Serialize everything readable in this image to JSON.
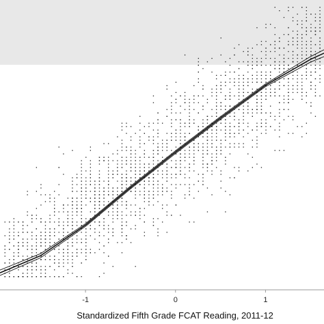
{
  "chart_data": {
    "type": "scatter",
    "title": "",
    "xlabel": "Standardized Fifth Grade FCAT Reading, 2011-12",
    "ylabel": "",
    "xlim": [
      -1.95,
      1.65
    ],
    "ylim": [
      -1.9,
      2.35
    ],
    "x_ticks": [
      -1,
      0,
      1
    ],
    "x_tick_labels": [
      "-1",
      "0",
      "1"
    ],
    "grid": false,
    "shaded_band": {
      "y_from": 1.4,
      "y_to": 2.35,
      "color": "#e8e8e8"
    },
    "series": [
      {
        "kind": "fit-line",
        "x": [
          -1.95,
          -1.5,
          -1.0,
          -0.5,
          0.0,
          0.5,
          1.0,
          1.5,
          1.65
        ],
        "y": [
          -1.65,
          -1.4,
          -0.95,
          -0.4,
          0.12,
          0.62,
          1.1,
          1.48,
          1.57
        ]
      },
      {
        "kind": "ci-upper",
        "x": [
          -1.95,
          -1.5,
          -1.0,
          -0.5,
          0.0,
          0.5,
          1.0,
          1.5,
          1.65
        ],
        "y": [
          -1.61,
          -1.37,
          -0.93,
          -0.38,
          0.14,
          0.64,
          1.12,
          1.52,
          1.62
        ]
      },
      {
        "kind": "ci-lower",
        "x": [
          -1.95,
          -1.5,
          -1.0,
          -0.5,
          0.0,
          0.5,
          1.0,
          1.5,
          1.65
        ],
        "y": [
          -1.69,
          -1.43,
          -0.97,
          -0.42,
          0.1,
          0.6,
          1.08,
          1.44,
          1.52
        ]
      }
    ],
    "scatter": {
      "slope": 0.95,
      "intercept": 0.12,
      "noise_sd": 0.42,
      "count": 2600,
      "x_step": 0.05,
      "y_step": 0.05
    },
    "colors": {
      "points": "#222222",
      "fit_line": "#111111",
      "band": "#e8e8e8",
      "axis": "#999999"
    }
  }
}
